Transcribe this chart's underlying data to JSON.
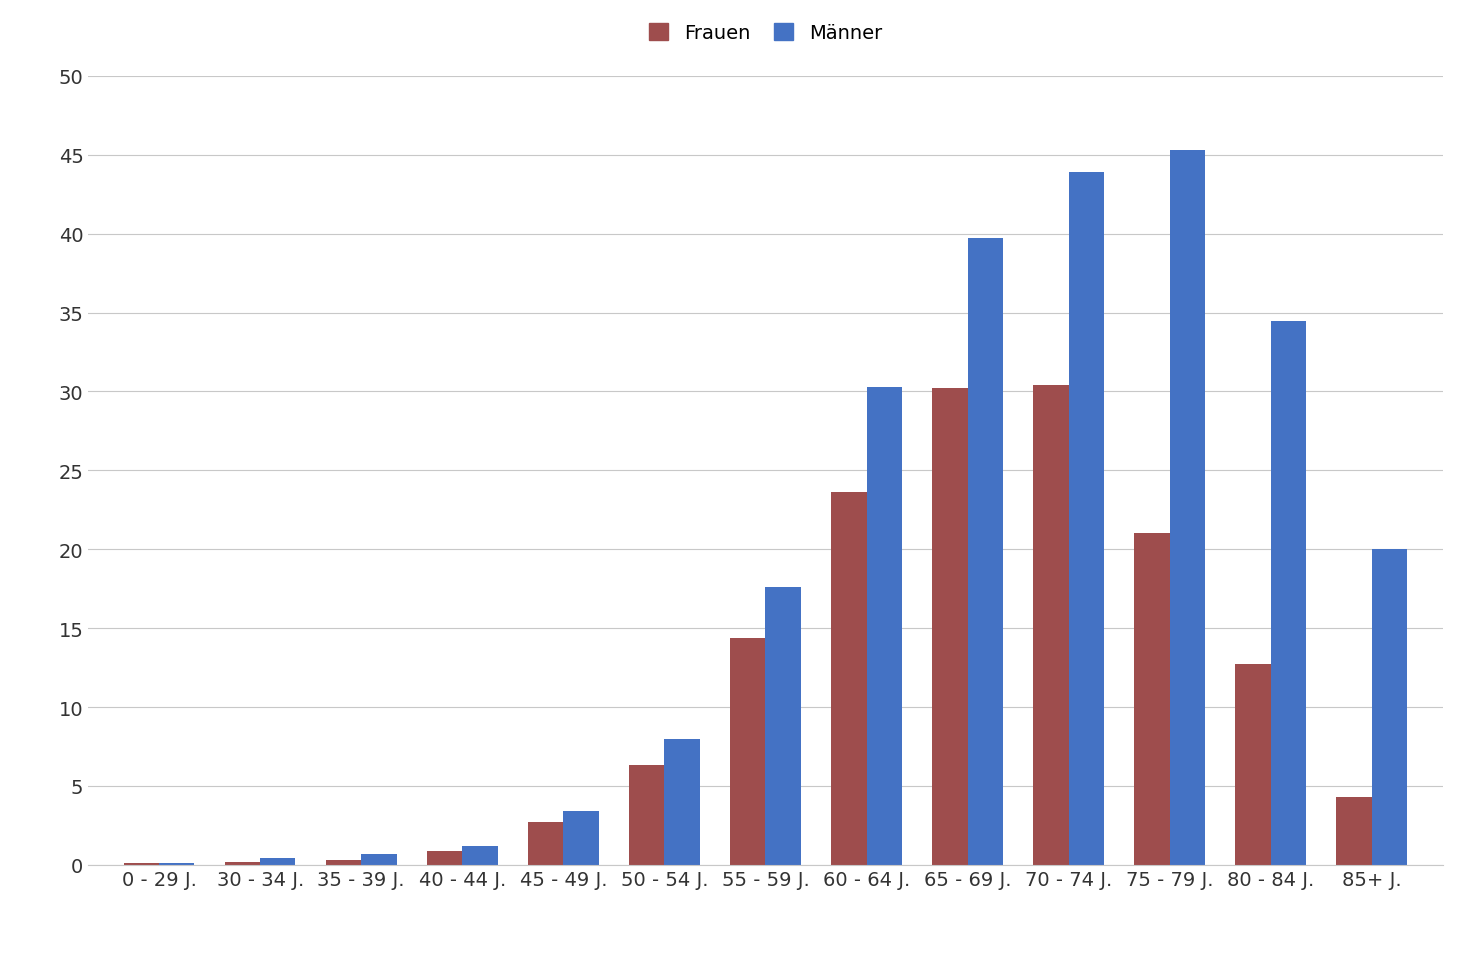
{
  "categories": [
    "0 - 29 J.",
    "30 - 34 J.",
    "35 - 39 J.",
    "40 - 44 J.",
    "45 - 49 J.",
    "50 - 54 J.",
    "55 - 59 J.",
    "60 - 64 J.",
    "65 - 69 J.",
    "70 - 74 J.",
    "75 - 79 J.",
    "80 - 84 J.",
    "85+ J."
  ],
  "frauen": [
    0.1,
    0.2,
    0.3,
    0.9,
    2.7,
    6.3,
    14.4,
    23.6,
    30.2,
    30.4,
    21.0,
    12.7,
    4.3
  ],
  "maenner": [
    0.1,
    0.4,
    0.7,
    1.2,
    3.4,
    8.0,
    17.6,
    30.3,
    39.7,
    43.9,
    45.3,
    34.5,
    20.0
  ],
  "frauen_color": "#9E4D4D",
  "maenner_color": "#4472C4",
  "ylim": [
    0,
    50
  ],
  "yticks": [
    0,
    5,
    10,
    15,
    20,
    25,
    30,
    35,
    40,
    45,
    50
  ],
  "legend_frauen": "Frauen",
  "legend_maenner": "Männer",
  "bar_width": 0.35,
  "background_color": "#FFFFFF",
  "grid_color": "#C8C8C8",
  "tick_fontsize": 14,
  "legend_fontsize": 14
}
